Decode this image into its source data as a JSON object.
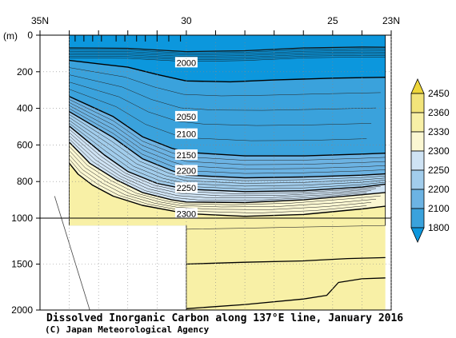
{
  "chart_data": {
    "type": "heatmap",
    "title": "Dissolved Inorganic Carbon along 137°E line, January 2016",
    "credit": "(C) Japan Meteorological Agency",
    "ylabel": "(m)",
    "x_ticks": [
      {
        "lat": 35,
        "label": "35N"
      },
      {
        "lat": 30,
        "label": "30"
      },
      {
        "lat": 25,
        "label": "25"
      },
      {
        "lat": 23,
        "label": "23N"
      }
    ],
    "xlim": [
      35,
      23
    ],
    "y_ticks": [
      {
        "depth": 0,
        "label": "0"
      },
      {
        "depth": 200,
        "label": "200"
      },
      {
        "depth": 400,
        "label": "400"
      },
      {
        "depth": 600,
        "label": "600"
      },
      {
        "depth": 800,
        "label": "800"
      },
      {
        "depth": 1000,
        "label": "1000"
      },
      {
        "depth": 1500,
        "label": "1500"
      },
      {
        "depth": 2000,
        "label": "2000"
      }
    ],
    "y_scale_break": 1000,
    "ylim": [
      0,
      2000
    ],
    "section_lat_range": [
      34,
      23.2
    ],
    "deep_section_lat_start": 30,
    "shallow_section_bottom": 1080,
    "contour_labels": [
      {
        "text": "2000",
        "lat": 30,
        "depth": 150
      },
      {
        "text": "2050",
        "lat": 30,
        "depth": 445
      },
      {
        "text": "2100",
        "lat": 30,
        "depth": 540
      },
      {
        "text": "2150",
        "lat": 30,
        "depth": 655
      },
      {
        "text": "2200",
        "lat": 30,
        "depth": 740
      },
      {
        "text": "2250",
        "lat": 30,
        "depth": 835
      },
      {
        "text": "2300",
        "lat": 30,
        "depth": 975
      }
    ],
    "colorbar": {
      "levels": [
        "2450",
        "2360",
        "2330",
        "2300",
        "2250",
        "2200",
        "2100",
        "1800"
      ],
      "colors": [
        "#eed63a",
        "#f2e47a",
        "#f8f0a6",
        "#fbf7d2",
        "#cfe3f4",
        "#a2cdec",
        "#6cb3e3",
        "#3aa2dc",
        "#0c97dd"
      ]
    },
    "colors": {
      "surface": "#0c97dd",
      "deep": "#f8f0a6"
    }
  }
}
